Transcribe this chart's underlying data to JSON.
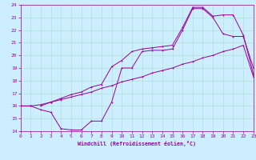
{
  "xlabel": "Windchill (Refroidissement éolien,°C)",
  "xlim": [
    0,
    23
  ],
  "ylim": [
    14,
    24
  ],
  "bg_color": "#cceeff",
  "line_color": "#990099",
  "grid_color": "#aaddcc",
  "line1_x": [
    0,
    1,
    2,
    3,
    4,
    5,
    6,
    7,
    8,
    9,
    10,
    11,
    12,
    13,
    14,
    15,
    16,
    17,
    18,
    19,
    20,
    21,
    22,
    23
  ],
  "line1_y": [
    16.0,
    16.0,
    16.1,
    16.3,
    16.5,
    16.7,
    16.9,
    17.1,
    17.4,
    17.6,
    17.9,
    18.1,
    18.3,
    18.6,
    18.8,
    19.0,
    19.3,
    19.5,
    19.8,
    20.0,
    20.3,
    20.5,
    20.8,
    18.3
  ],
  "line2_x": [
    0,
    1,
    2,
    3,
    4,
    5,
    6,
    7,
    8,
    9,
    10,
    11,
    12,
    13,
    14,
    15,
    16,
    17,
    18,
    19,
    20,
    21,
    22,
    23
  ],
  "line2_y": [
    16.0,
    16.0,
    15.7,
    15.5,
    14.2,
    14.1,
    14.1,
    14.8,
    14.8,
    16.3,
    19.0,
    19.0,
    20.3,
    20.4,
    20.4,
    20.5,
    22.0,
    23.7,
    23.7,
    23.0,
    21.7,
    21.5,
    21.5,
    19.0
  ],
  "line3_x": [
    2,
    3,
    4,
    5,
    6,
    7,
    8,
    9,
    10,
    11,
    12,
    13,
    14,
    15,
    16,
    17,
    18,
    19,
    20,
    21,
    22,
    23
  ],
  "line3_y": [
    16.0,
    16.3,
    16.6,
    16.9,
    17.1,
    17.5,
    17.7,
    19.1,
    19.6,
    20.3,
    20.5,
    20.6,
    20.7,
    20.8,
    22.2,
    23.8,
    23.8,
    23.1,
    23.2,
    23.2,
    21.6,
    18.5
  ]
}
